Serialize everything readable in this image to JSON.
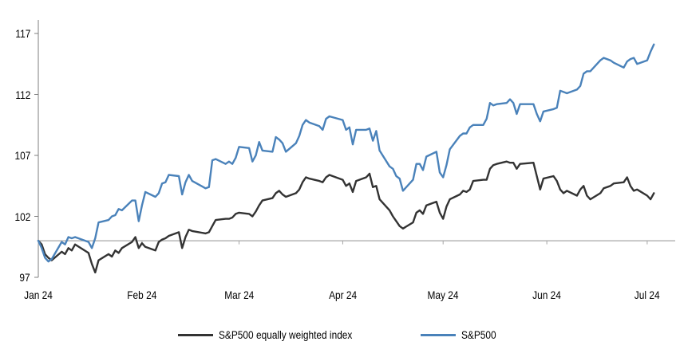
{
  "chart_data": {
    "type": "line",
    "title": "",
    "grid": false,
    "reference_line_value": 100,
    "y_axis": {
      "min": 97,
      "max": 117,
      "tick_step": 5,
      "ticks": [
        97,
        102,
        107,
        112,
        117
      ]
    },
    "x_axis": {
      "ticks": [
        {
          "label": "Jan 24",
          "date": "01-01"
        },
        {
          "label": "Feb 24",
          "date": "02-01"
        },
        {
          "label": "Mar 24",
          "date": "03-01"
        },
        {
          "label": "Apr 24",
          "date": "04-01"
        },
        {
          "label": "May 24",
          "date": "05-01"
        },
        {
          "label": "Jun 24",
          "date": "06-01"
        },
        {
          "label": "Jul 24",
          "date": "07-01"
        }
      ]
    },
    "legend": {
      "position": "bottom"
    },
    "colors": {
      "equal_weight_line": "#333333",
      "sp500_line": "#4a82ba",
      "value_axis": "#7f7f7f",
      "category_axis": "#a6a6a6",
      "text": "#000000"
    },
    "series": [
      {
        "name": "S&P500 equally weighted index",
        "color": "#333333",
        "points": [
          [
            "01-01",
            100.0
          ],
          [
            "01-02",
            99.7
          ],
          [
            "01-03",
            98.9
          ],
          [
            "01-04",
            98.6
          ],
          [
            "01-05",
            98.4
          ],
          [
            "01-08",
            99.1
          ],
          [
            "01-09",
            98.9
          ],
          [
            "01-10",
            99.4
          ],
          [
            "01-11",
            99.2
          ],
          [
            "01-12",
            99.7
          ],
          [
            "01-16",
            99.0
          ],
          [
            "01-17",
            98.1
          ],
          [
            "01-18",
            97.4
          ],
          [
            "01-19",
            98.4
          ],
          [
            "01-22",
            98.9
          ],
          [
            "01-23",
            98.7
          ],
          [
            "01-24",
            99.2
          ],
          [
            "01-25",
            99.0
          ],
          [
            "01-26",
            99.4
          ],
          [
            "01-29",
            99.9
          ],
          [
            "01-30",
            100.3
          ],
          [
            "01-31",
            99.4
          ],
          [
            "02-01",
            99.8
          ],
          [
            "02-02",
            99.5
          ],
          [
            "02-05",
            99.2
          ],
          [
            "02-06",
            99.9
          ],
          [
            "02-07",
            100.1
          ],
          [
            "02-08",
            100.2
          ],
          [
            "02-09",
            100.4
          ],
          [
            "02-12",
            100.7
          ],
          [
            "02-13",
            99.4
          ],
          [
            "02-14",
            100.3
          ],
          [
            "02-15",
            100.9
          ],
          [
            "02-16",
            100.8
          ],
          [
            "02-20",
            100.6
          ],
          [
            "02-21",
            100.7
          ],
          [
            "02-22",
            101.2
          ],
          [
            "02-23",
            101.7
          ],
          [
            "02-26",
            101.8
          ],
          [
            "02-27",
            101.8
          ],
          [
            "02-28",
            101.9
          ],
          [
            "02-29",
            102.2
          ],
          [
            "03-01",
            102.3
          ],
          [
            "03-04",
            102.2
          ],
          [
            "03-05",
            102.0
          ],
          [
            "03-06",
            102.4
          ],
          [
            "03-07",
            102.9
          ],
          [
            "03-08",
            103.3
          ],
          [
            "03-11",
            103.5
          ],
          [
            "03-12",
            103.9
          ],
          [
            "03-13",
            104.1
          ],
          [
            "03-14",
            103.8
          ],
          [
            "03-15",
            103.6
          ],
          [
            "03-18",
            103.9
          ],
          [
            "03-19",
            104.2
          ],
          [
            "03-20",
            104.8
          ],
          [
            "03-21",
            105.2
          ],
          [
            "03-22",
            105.1
          ],
          [
            "03-25",
            104.9
          ],
          [
            "03-26",
            104.8
          ],
          [
            "03-27",
            105.2
          ],
          [
            "03-28",
            105.4
          ],
          [
            "04-01",
            105.0
          ],
          [
            "04-02",
            104.5
          ],
          [
            "04-03",
            104.7
          ],
          [
            "04-04",
            104.0
          ],
          [
            "04-05",
            104.9
          ],
          [
            "04-08",
            105.2
          ],
          [
            "04-09",
            105.5
          ],
          [
            "04-10",
            104.4
          ],
          [
            "04-11",
            104.5
          ],
          [
            "04-12",
            103.4
          ],
          [
            "04-15",
            102.5
          ],
          [
            "04-16",
            102.0
          ],
          [
            "04-17",
            101.6
          ],
          [
            "04-18",
            101.2
          ],
          [
            "04-19",
            101.0
          ],
          [
            "04-22",
            101.5
          ],
          [
            "04-23",
            102.3
          ],
          [
            "04-24",
            102.5
          ],
          [
            "04-25",
            102.2
          ],
          [
            "04-26",
            102.9
          ],
          [
            "04-29",
            103.2
          ],
          [
            "04-30",
            102.3
          ],
          [
            "05-01",
            101.8
          ],
          [
            "05-02",
            102.8
          ],
          [
            "05-03",
            103.4
          ],
          [
            "05-06",
            103.8
          ],
          [
            "05-07",
            104.1
          ],
          [
            "05-08",
            104.0
          ],
          [
            "05-09",
            104.2
          ],
          [
            "05-10",
            104.9
          ],
          [
            "05-13",
            105.0
          ],
          [
            "05-14",
            105.0
          ],
          [
            "05-15",
            105.9
          ],
          [
            "05-16",
            106.2
          ],
          [
            "05-17",
            106.3
          ],
          [
            "05-20",
            106.5
          ],
          [
            "05-21",
            106.4
          ],
          [
            "05-22",
            106.4
          ],
          [
            "05-23",
            105.9
          ],
          [
            "05-24",
            106.3
          ],
          [
            "05-28",
            106.4
          ],
          [
            "05-29",
            105.3
          ],
          [
            "05-30",
            104.2
          ],
          [
            "05-31",
            105.1
          ],
          [
            "06-03",
            105.3
          ],
          [
            "06-04",
            104.9
          ],
          [
            "06-05",
            104.2
          ],
          [
            "06-06",
            103.9
          ],
          [
            "06-07",
            104.1
          ],
          [
            "06-10",
            103.7
          ],
          [
            "06-11",
            104.2
          ],
          [
            "06-12",
            104.5
          ],
          [
            "06-13",
            103.7
          ],
          [
            "06-14",
            103.4
          ],
          [
            "06-17",
            103.9
          ],
          [
            "06-18",
            104.3
          ],
          [
            "06-20",
            104.5
          ],
          [
            "06-21",
            104.7
          ],
          [
            "06-24",
            104.8
          ],
          [
            "06-25",
            105.2
          ],
          [
            "06-26",
            104.5
          ],
          [
            "06-27",
            104.1
          ],
          [
            "06-28",
            104.2
          ],
          [
            "07-01",
            103.7
          ],
          [
            "07-02",
            103.4
          ],
          [
            "07-03",
            103.9
          ]
        ]
      },
      {
        "name": "S&P500",
        "color": "#4a82ba",
        "points": [
          [
            "01-01",
            100.0
          ],
          [
            "01-02",
            99.4
          ],
          [
            "01-03",
            98.6
          ],
          [
            "01-04",
            98.3
          ],
          [
            "01-05",
            98.5
          ],
          [
            "01-08",
            99.9
          ],
          [
            "01-09",
            99.7
          ],
          [
            "01-10",
            100.3
          ],
          [
            "01-11",
            100.2
          ],
          [
            "01-12",
            100.3
          ],
          [
            "01-16",
            99.9
          ],
          [
            "01-17",
            99.4
          ],
          [
            "01-18",
            100.2
          ],
          [
            "01-19",
            101.5
          ],
          [
            "01-22",
            101.7
          ],
          [
            "01-23",
            102.0
          ],
          [
            "01-24",
            102.1
          ],
          [
            "01-25",
            102.6
          ],
          [
            "01-26",
            102.5
          ],
          [
            "01-29",
            103.3
          ],
          [
            "01-30",
            103.3
          ],
          [
            "01-31",
            101.6
          ],
          [
            "02-01",
            102.9
          ],
          [
            "02-02",
            104.0
          ],
          [
            "02-05",
            103.6
          ],
          [
            "02-06",
            103.9
          ],
          [
            "02-07",
            104.7
          ],
          [
            "02-08",
            104.8
          ],
          [
            "02-09",
            105.4
          ],
          [
            "02-12",
            105.3
          ],
          [
            "02-13",
            103.8
          ],
          [
            "02-14",
            104.8
          ],
          [
            "02-15",
            105.4
          ],
          [
            "02-16",
            104.9
          ],
          [
            "02-20",
            104.3
          ],
          [
            "02-21",
            104.4
          ],
          [
            "02-22",
            106.6
          ],
          [
            "02-23",
            106.7
          ],
          [
            "02-26",
            106.3
          ],
          [
            "02-27",
            106.5
          ],
          [
            "02-28",
            106.3
          ],
          [
            "02-29",
            106.8
          ],
          [
            "03-01",
            107.7
          ],
          [
            "03-04",
            107.6
          ],
          [
            "03-05",
            106.5
          ],
          [
            "03-06",
            107.0
          ],
          [
            "03-07",
            108.1
          ],
          [
            "03-08",
            107.4
          ],
          [
            "03-11",
            107.3
          ],
          [
            "03-12",
            108.5
          ],
          [
            "03-13",
            108.3
          ],
          [
            "03-14",
            108.0
          ],
          [
            "03-15",
            107.3
          ],
          [
            "03-18",
            108.0
          ],
          [
            "03-19",
            108.6
          ],
          [
            "03-20",
            109.5
          ],
          [
            "03-21",
            109.9
          ],
          [
            "03-22",
            109.7
          ],
          [
            "03-25",
            109.4
          ],
          [
            "03-26",
            109.1
          ],
          [
            "03-27",
            110.0
          ],
          [
            "03-28",
            110.2
          ],
          [
            "04-01",
            109.9
          ],
          [
            "04-02",
            109.1
          ],
          [
            "04-03",
            109.3
          ],
          [
            "04-04",
            107.9
          ],
          [
            "04-05",
            109.1
          ],
          [
            "04-08",
            109.1
          ],
          [
            "04-09",
            109.2
          ],
          [
            "04-10",
            108.2
          ],
          [
            "04-11",
            109.0
          ],
          [
            "04-12",
            107.4
          ],
          [
            "04-15",
            106.1
          ],
          [
            "04-16",
            105.9
          ],
          [
            "04-17",
            105.3
          ],
          [
            "04-18",
            105.1
          ],
          [
            "04-19",
            104.1
          ],
          [
            "04-22",
            105.0
          ],
          [
            "04-23",
            106.3
          ],
          [
            "04-24",
            106.3
          ],
          [
            "04-25",
            105.8
          ],
          [
            "04-26",
            106.9
          ],
          [
            "04-29",
            107.3
          ],
          [
            "04-30",
            105.6
          ],
          [
            "05-01",
            105.2
          ],
          [
            "05-02",
            106.2
          ],
          [
            "05-03",
            107.5
          ],
          [
            "05-06",
            108.6
          ],
          [
            "05-07",
            108.8
          ],
          [
            "05-08",
            108.8
          ],
          [
            "05-09",
            109.3
          ],
          [
            "05-10",
            109.5
          ],
          [
            "05-13",
            109.5
          ],
          [
            "05-14",
            110.0
          ],
          [
            "05-15",
            111.3
          ],
          [
            "05-16",
            111.1
          ],
          [
            "05-17",
            111.2
          ],
          [
            "05-20",
            111.3
          ],
          [
            "05-21",
            111.6
          ],
          [
            "05-22",
            111.3
          ],
          [
            "05-23",
            110.4
          ],
          [
            "05-24",
            111.2
          ],
          [
            "05-28",
            111.2
          ],
          [
            "05-29",
            110.4
          ],
          [
            "05-30",
            109.8
          ],
          [
            "05-31",
            110.6
          ],
          [
            "06-03",
            110.8
          ],
          [
            "06-04",
            110.9
          ],
          [
            "06-05",
            112.3
          ],
          [
            "06-06",
            112.2
          ],
          [
            "06-07",
            112.1
          ],
          [
            "06-10",
            112.4
          ],
          [
            "06-11",
            112.7
          ],
          [
            "06-12",
            113.7
          ],
          [
            "06-13",
            113.9
          ],
          [
            "06-14",
            113.9
          ],
          [
            "06-17",
            114.8
          ],
          [
            "06-18",
            115.0
          ],
          [
            "06-20",
            114.8
          ],
          [
            "06-21",
            114.6
          ],
          [
            "06-24",
            114.2
          ],
          [
            "06-25",
            114.7
          ],
          [
            "06-26",
            114.9
          ],
          [
            "06-27",
            115.0
          ],
          [
            "06-28",
            114.5
          ],
          [
            "07-01",
            114.8
          ],
          [
            "07-02",
            115.5
          ],
          [
            "07-03",
            116.1
          ]
        ]
      }
    ]
  }
}
